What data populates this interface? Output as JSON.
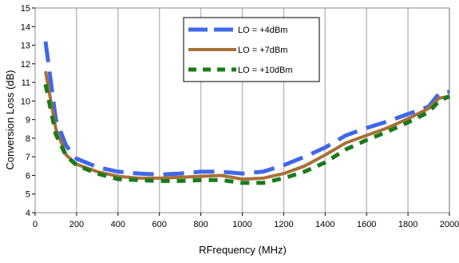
{
  "chart_data": {
    "type": "line",
    "title": "",
    "xlabel": "RFrequency (MHz)",
    "ylabel": "Conversion Loss (dB)",
    "xlim": [
      0,
      2000
    ],
    "ylim": [
      4,
      15
    ],
    "xticks": [
      0,
      200,
      400,
      600,
      800,
      1000,
      1200,
      1400,
      1600,
      1800,
      2000
    ],
    "yticks": [
      4,
      5,
      6,
      7,
      8,
      9,
      10,
      11,
      12,
      13,
      14,
      15
    ],
    "grid": "vertical",
    "legend_position": "top-center",
    "series": [
      {
        "name": "LO = +4dBm",
        "color": "#3f68e8",
        "style": "long-dash",
        "x": [
          50,
          100,
          150,
          200,
          300,
          400,
          500,
          600,
          700,
          800,
          900,
          1000,
          1100,
          1200,
          1300,
          1400,
          1500,
          1600,
          1700,
          1800,
          1900,
          1950,
          2000
        ],
        "y": [
          13.2,
          9.0,
          7.6,
          6.9,
          6.45,
          6.2,
          6.1,
          6.05,
          6.1,
          6.2,
          6.2,
          6.1,
          6.2,
          6.55,
          7.0,
          7.5,
          8.15,
          8.55,
          8.9,
          9.3,
          9.7,
          10.4,
          10.5
        ]
      },
      {
        "name": "LO = +7dBm",
        "color": "#a87037",
        "style": "solid",
        "x": [
          50,
          100,
          150,
          200,
          300,
          400,
          500,
          600,
          700,
          800,
          900,
          1000,
          1100,
          1200,
          1300,
          1400,
          1500,
          1600,
          1700,
          1800,
          1900,
          1950,
          2000
        ],
        "y": [
          11.6,
          8.5,
          7.1,
          6.6,
          6.2,
          5.95,
          5.85,
          5.85,
          5.9,
          5.95,
          6.0,
          5.8,
          5.85,
          6.1,
          6.5,
          7.1,
          7.75,
          8.15,
          8.55,
          9.05,
          9.6,
          10.15,
          10.25
        ]
      },
      {
        "name": "LO = +10dBm",
        "color": "#1a7a1a",
        "style": "dash",
        "x": [
          50,
          100,
          150,
          200,
          300,
          400,
          500,
          600,
          700,
          800,
          900,
          1000,
          1100,
          1200,
          1300,
          1400,
          1500,
          1600,
          1700,
          1800,
          1900,
          1950,
          2000
        ],
        "y": [
          10.9,
          8.2,
          7.05,
          6.55,
          6.1,
          5.8,
          5.75,
          5.7,
          5.7,
          5.75,
          5.75,
          5.6,
          5.6,
          5.85,
          6.2,
          6.7,
          7.4,
          7.9,
          8.35,
          8.85,
          9.4,
          10.0,
          10.25
        ]
      }
    ]
  }
}
